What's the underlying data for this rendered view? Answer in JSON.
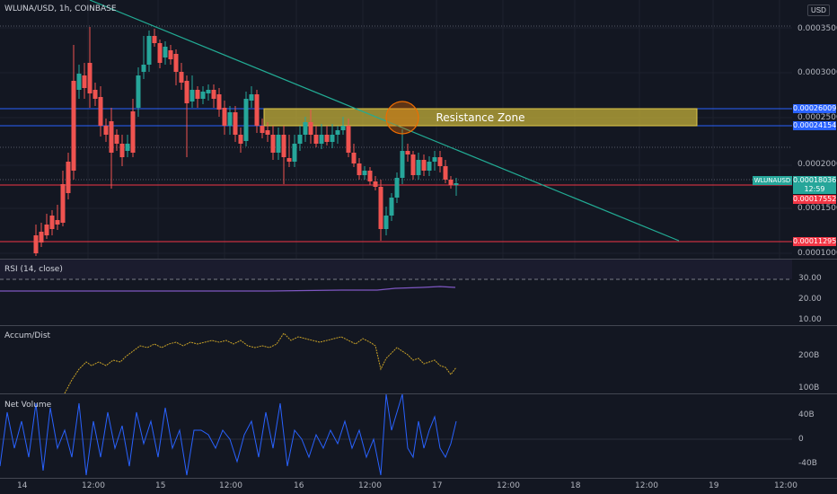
{
  "header": {
    "symbol_title": "WLUNA/USD, 1h, COINBASE",
    "currency_button": "USD"
  },
  "main_chart": {
    "annotation": "Resistance Zone",
    "price_axis_ticks": [
      "0.00035000",
      "0.00030000",
      "0.00025000",
      "0.00020000",
      "0.00015000",
      "0.00010000"
    ],
    "price_tags": {
      "level_upper": "0.00026009",
      "level_lower": "0.00024154",
      "symbol_name": "WLUNAUSD",
      "last_price": "0.00018036",
      "countdown": "12:59",
      "red_level": "0.00017552",
      "support_level": "0.00011295"
    },
    "colors": {
      "up": "#26a69a",
      "down": "#ef5350",
      "trendline": "#22ab94",
      "zone": "#c9b43a",
      "level_blue": "#2962ff",
      "level_red": "#f23645"
    }
  },
  "rsi_pane": {
    "title": "RSI (14, close)",
    "ticks": [
      "30.00",
      "20.00",
      "10.00"
    ],
    "color": "#7e57c2"
  },
  "accum_pane": {
    "title": "Accum/Dist",
    "ticks": [
      "200B",
      "100B"
    ],
    "color": "#c9a227"
  },
  "netvol_pane": {
    "title": "Net Volume",
    "ticks": [
      "40B",
      "0",
      "-40B"
    ],
    "color": "#2962ff"
  },
  "time_axis": [
    "14",
    "12:00",
    "15",
    "12:00",
    "16",
    "12:00",
    "17",
    "12:00",
    "18",
    "12:00",
    "19",
    "12:00"
  ]
}
